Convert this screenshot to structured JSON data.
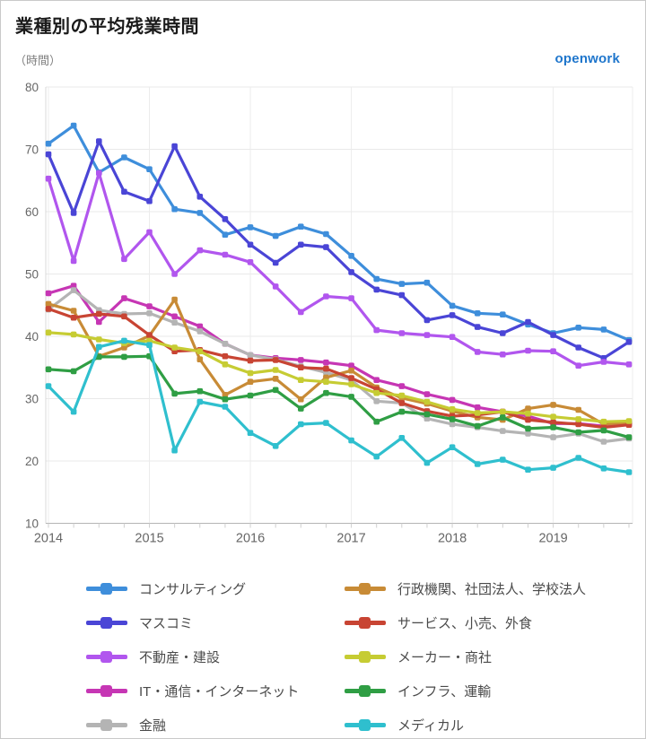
{
  "header": {
    "title": "業種別の平均残業時間",
    "unit_label": "（時間）",
    "brand": "openwork"
  },
  "chart_data": {
    "type": "line",
    "title": "業種別の平均残業時間",
    "ylabel": "（時間）",
    "ylim": [
      10,
      80
    ],
    "y_ticks": [
      10,
      20,
      30,
      40,
      50,
      60,
      70,
      80
    ],
    "x_tick_labels": [
      "2014",
      "2015",
      "2016",
      "2017",
      "2018",
      "2019"
    ],
    "x_start_year": 2014,
    "x_step_years": 0.25,
    "points_per_series": 24,
    "grid": true,
    "legend_position": "bottom",
    "legend_columns": [
      [
        0,
        1,
        2,
        3,
        4
      ],
      [
        5,
        6,
        7,
        8,
        9
      ]
    ],
    "series": [
      {
        "name": "コンサルティング",
        "color": "#3E8EDB",
        "values": [
          70.9,
          73.8,
          66.3,
          68.7,
          66.8,
          60.4,
          59.8,
          56.3,
          57.5,
          56.1,
          57.6,
          56.4,
          52.9,
          49.2,
          48.4,
          48.6,
          44.9,
          43.7,
          43.5,
          41.9,
          40.5,
          41.4,
          41.1,
          39.4
        ]
      },
      {
        "name": "マスコミ",
        "color": "#4A45D6",
        "values": [
          69.2,
          59.8,
          71.3,
          63.2,
          61.7,
          70.5,
          62.4,
          58.8,
          54.7,
          51.8,
          54.7,
          54.3,
          50.3,
          47.5,
          46.6,
          42.6,
          43.4,
          41.5,
          40.5,
          42.3,
          40.2,
          38.2,
          36.5,
          39.1
        ]
      },
      {
        "name": "不動産・建設",
        "color": "#B156EE",
        "values": [
          65.3,
          52.1,
          66.2,
          52.4,
          56.7,
          50.0,
          53.8,
          53.1,
          51.9,
          48.0,
          43.9,
          46.4,
          46.1,
          41.0,
          40.5,
          40.2,
          39.9,
          37.5,
          37.1,
          37.7,
          37.6,
          35.3,
          35.9,
          35.5
        ]
      },
      {
        "name": "IT・通信・インターネット",
        "color": "#C636B4",
        "values": [
          46.9,
          48.1,
          42.3,
          46.1,
          44.8,
          43.2,
          41.6,
          38.8,
          37.0,
          36.5,
          36.2,
          35.8,
          35.3,
          33.0,
          32.0,
          30.7,
          29.8,
          28.6,
          27.9,
          27.2,
          26.0,
          26.0,
          25.6,
          25.9
        ]
      },
      {
        "name": "金融",
        "color": "#B4B4B4",
        "values": [
          44.3,
          47.4,
          44.2,
          43.6,
          43.7,
          42.2,
          40.8,
          38.8,
          37.0,
          36.3,
          35.2,
          34.2,
          33.0,
          29.6,
          29.3,
          26.8,
          25.9,
          25.4,
          24.8,
          24.4,
          23.8,
          24.4,
          23.1,
          23.6
        ]
      },
      {
        "name": "行政機関、社団法人、学校法人",
        "color": "#C88B36",
        "values": [
          45.2,
          44.1,
          36.8,
          38.2,
          40.1,
          45.9,
          36.3,
          30.6,
          32.7,
          33.2,
          29.9,
          33.4,
          34.5,
          31.8,
          30.1,
          29.2,
          28.0,
          27.0,
          26.6,
          28.4,
          29.0,
          28.2,
          25.9,
          26.2
        ]
      },
      {
        "name": "サービス、小売、外食",
        "color": "#C84433",
        "values": [
          44.4,
          43.0,
          43.6,
          43.2,
          40.2,
          37.6,
          37.8,
          36.8,
          36.1,
          36.2,
          35.0,
          34.8,
          33.3,
          31.5,
          29.3,
          28.0,
          27.2,
          27.4,
          27.9,
          26.6,
          26.2,
          25.9,
          25.4,
          25.8
        ]
      },
      {
        "name": "メーカー・商社",
        "color": "#C6CC33",
        "values": [
          40.6,
          40.3,
          39.5,
          38.9,
          39.3,
          38.2,
          37.6,
          35.5,
          34.1,
          34.6,
          33.0,
          32.7,
          32.3,
          30.9,
          30.5,
          29.5,
          28.3,
          27.7,
          27.9,
          27.6,
          27.1,
          26.7,
          26.3,
          26.4
        ]
      },
      {
        "name": "インフラ、運輸",
        "color": "#2F9E44",
        "values": [
          34.7,
          34.4,
          36.7,
          36.7,
          36.8,
          30.8,
          31.2,
          29.9,
          30.5,
          31.4,
          28.4,
          30.9,
          30.3,
          26.3,
          27.9,
          27.5,
          26.7,
          25.6,
          27.0,
          25.2,
          25.4,
          24.6,
          24.9,
          23.8
        ]
      },
      {
        "name": "メディカル",
        "color": "#2FBFCE",
        "values": [
          32.0,
          27.9,
          38.3,
          39.3,
          38.6,
          21.7,
          29.5,
          28.7,
          24.5,
          22.4,
          25.9,
          26.1,
          23.3,
          20.7,
          23.7,
          19.7,
          22.2,
          19.5,
          20.2,
          18.6,
          18.9,
          20.5,
          18.8,
          18.2
        ]
      }
    ]
  }
}
